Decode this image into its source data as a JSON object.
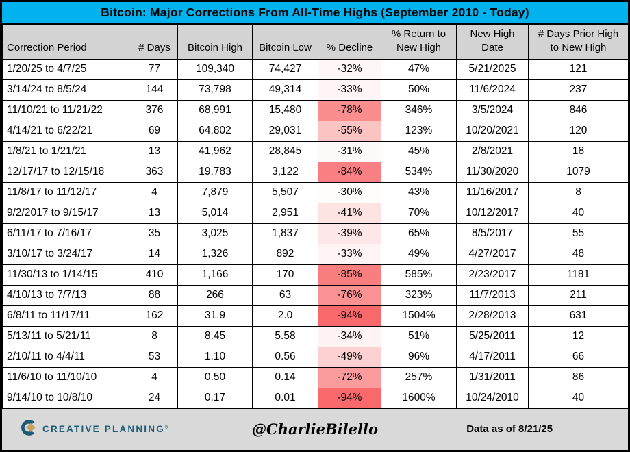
{
  "title": "Bitcoin: Major Corrections From All-Time Highs (September 2010 - Today)",
  "colors": {
    "title_bg": "#00B3EF",
    "header_bg": "#D3D3D3",
    "footer_bg": "#D9D9D9",
    "border": "#000000",
    "brand_teal": "#1B5B76",
    "brand_gold": "#C7A263",
    "decline_scale_min": "#FFFCFC",
    "decline_scale_max": "#F8696B",
    "decline_bgs": [
      "#FFF7F7",
      "#FFF5F5",
      "#FA8E8F",
      "#FCC3C3",
      "#FFFAFA",
      "#F98082",
      "#FFFCFC",
      "#FEE3E3",
      "#FEE7E8",
      "#FFF5F5",
      "#F97E7F",
      "#FA9294",
      "#F8696B",
      "#FFF3F3",
      "#FDD0D1",
      "#FA9C9D",
      "#F8696B"
    ]
  },
  "header_lines": [
    [
      "Correction Period"
    ],
    [
      "# Days"
    ],
    [
      "Bitcoin High"
    ],
    [
      "Bitcoin Low"
    ],
    [
      "% Decline"
    ],
    [
      "% Return to",
      "New High"
    ],
    [
      "New High",
      "Date"
    ],
    [
      "# Days Prior High",
      "to New High"
    ]
  ],
  "chart_data": {
    "type": "table",
    "title": "Bitcoin: Major Corrections From All-Time Highs (September 2010 - Today)",
    "columns": [
      "Correction Period",
      "# Days",
      "Bitcoin High",
      "Bitcoin Low",
      "% Decline",
      "% Return to New High",
      "New High Date",
      "# Days Prior High to New High"
    ],
    "rows": [
      [
        "1/20/25 to 4/7/25",
        "77",
        "109,340",
        "74,427",
        "-32%",
        "47%",
        "5/21/2025",
        "121"
      ],
      [
        "3/14/24 to 8/5/24",
        "144",
        "73,798",
        "49,314",
        "-33%",
        "50%",
        "11/6/2024",
        "237"
      ],
      [
        "11/10/21 to 11/21/22",
        "376",
        "68,991",
        "15,480",
        "-78%",
        "346%",
        "3/5/2024",
        "846"
      ],
      [
        "4/14/21 to 6/22/21",
        "69",
        "64,802",
        "29,031",
        "-55%",
        "123%",
        "10/20/2021",
        "120"
      ],
      [
        "1/8/21 to 1/21/21",
        "13",
        "41,962",
        "28,845",
        "-31%",
        "45%",
        "2/8/2021",
        "18"
      ],
      [
        "12/17/17 to 12/15/18",
        "363",
        "19,783",
        "3,122",
        "-84%",
        "534%",
        "11/30/2020",
        "1079"
      ],
      [
        "11/8/17 to 11/12/17",
        "4",
        "7,879",
        "5,507",
        "-30%",
        "43%",
        "11/16/2017",
        "8"
      ],
      [
        "9/2/2017 to 9/15/17",
        "13",
        "5,014",
        "2,951",
        "-41%",
        "70%",
        "10/12/2017",
        "40"
      ],
      [
        "6/11/17 to 7/16/17",
        "35",
        "3,025",
        "1,837",
        "-39%",
        "65%",
        "8/5/2017",
        "55"
      ],
      [
        "3/10/17 to 3/24/17",
        "14",
        "1,326",
        "892",
        "-33%",
        "49%",
        "4/27/2017",
        "48"
      ],
      [
        "11/30/13 to 1/14/15",
        "410",
        "1,166",
        "170",
        "-85%",
        "585%",
        "2/23/2017",
        "1181"
      ],
      [
        "4/10/13 to 7/7/13",
        "88",
        "266",
        "63",
        "-76%",
        "323%",
        "11/7/2013",
        "211"
      ],
      [
        "6/8/11 to 11/17/11",
        "162",
        "31.9",
        "2.0",
        "-94%",
        "1504%",
        "2/28/2013",
        "631"
      ],
      [
        "5/13/11 to 5/21/11",
        "8",
        "8.45",
        "5.58",
        "-34%",
        "51%",
        "5/25/2011",
        "12"
      ],
      [
        "2/10/11 to 4/4/11",
        "53",
        "1.10",
        "0.56",
        "-49%",
        "96%",
        "4/17/2011",
        "66"
      ],
      [
        "11/6/10 to 11/10/10",
        "4",
        "0.50",
        "0.14",
        "-72%",
        "257%",
        "1/31/2011",
        "86"
      ],
      [
        "9/14/10 to 10/8/10",
        "24",
        "0.17",
        "0.01",
        "-94%",
        "1600%",
        "10/24/2010",
        "40"
      ]
    ]
  },
  "footer": {
    "brand": "CREATIVE PLANNING",
    "trademark": "®",
    "handle": "@CharlieBilello",
    "data_as_of": "Data as of 8/21/25"
  }
}
